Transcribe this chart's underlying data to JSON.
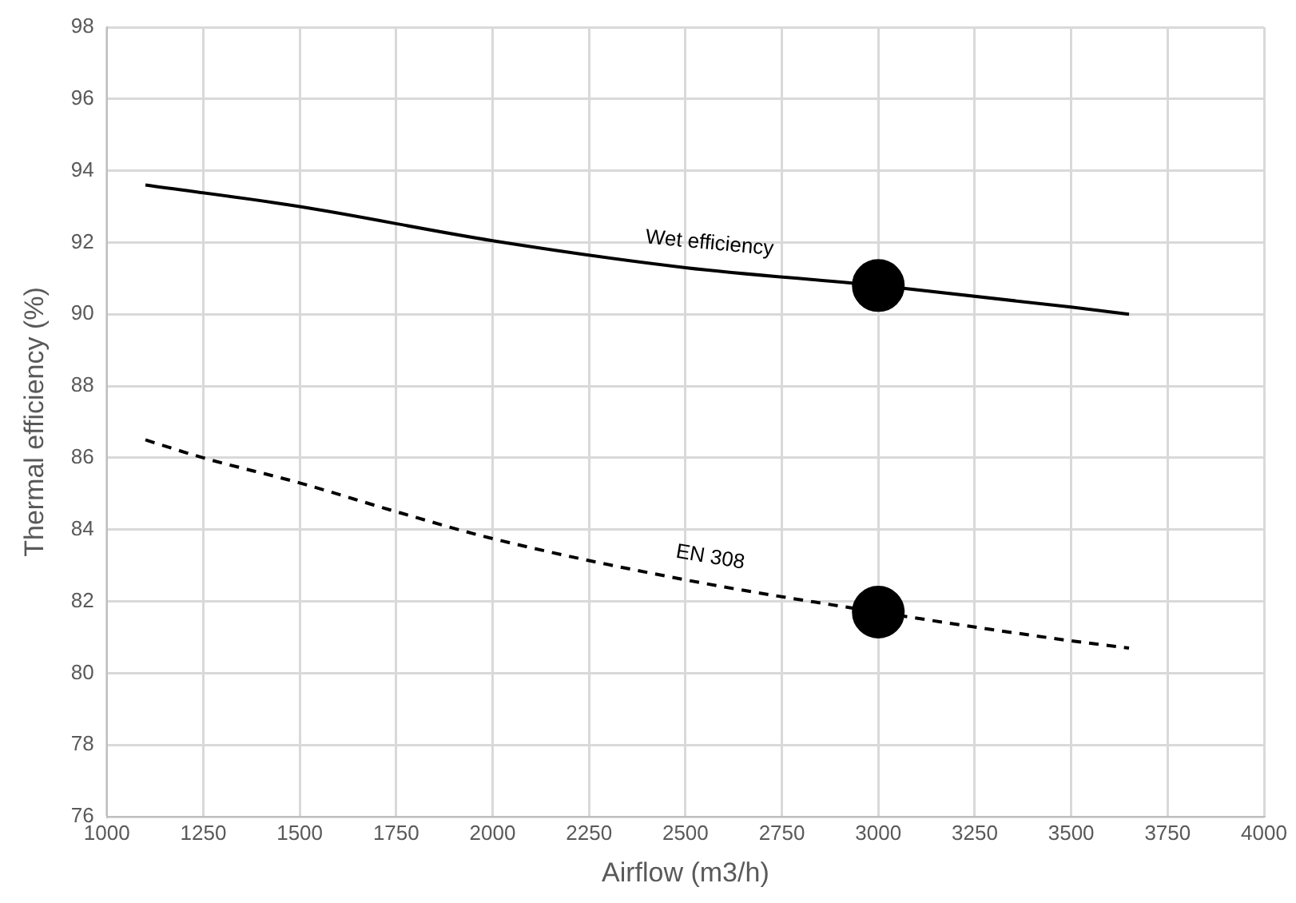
{
  "chart_data": {
    "type": "line",
    "xlabel": "Airflow (m3/h)",
    "ylabel": "Thermal efficiency (%)",
    "xlim": [
      1000,
      4000
    ],
    "xticks": [
      1000,
      1250,
      1500,
      1750,
      2000,
      2250,
      2500,
      2750,
      3000,
      3250,
      3500,
      3750,
      4000
    ],
    "ylim": [
      76,
      98
    ],
    "yticks": [
      76,
      78,
      80,
      82,
      84,
      86,
      88,
      90,
      92,
      94,
      96,
      98
    ],
    "grid": true,
    "legend": false,
    "marker": "none",
    "series": [
      {
        "name": "Wet efficiency",
        "color": "#000000",
        "line_style": "solid",
        "x": [
          1100,
          1500,
          2000,
          2500,
          3000,
          3500,
          3650
        ],
        "values": [
          93.6,
          93.0,
          92.05,
          91.3,
          90.8,
          90.2,
          90.0
        ]
      },
      {
        "name": "EN 308",
        "color": "#000000",
        "line_style": "dashed",
        "x": [
          1100,
          1250,
          1500,
          1750,
          2000,
          2500,
          3000,
          3500,
          3650
        ],
        "values": [
          86.5,
          86.0,
          85.3,
          84.5,
          83.75,
          82.6,
          81.7,
          80.9,
          80.7
        ]
      },
      {
        "type": "scatter",
        "marker": "circle",
        "color": "#000000",
        "x": [
          3000,
          3000
        ],
        "values": [
          90.8,
          81.7
        ]
      }
    ]
  }
}
